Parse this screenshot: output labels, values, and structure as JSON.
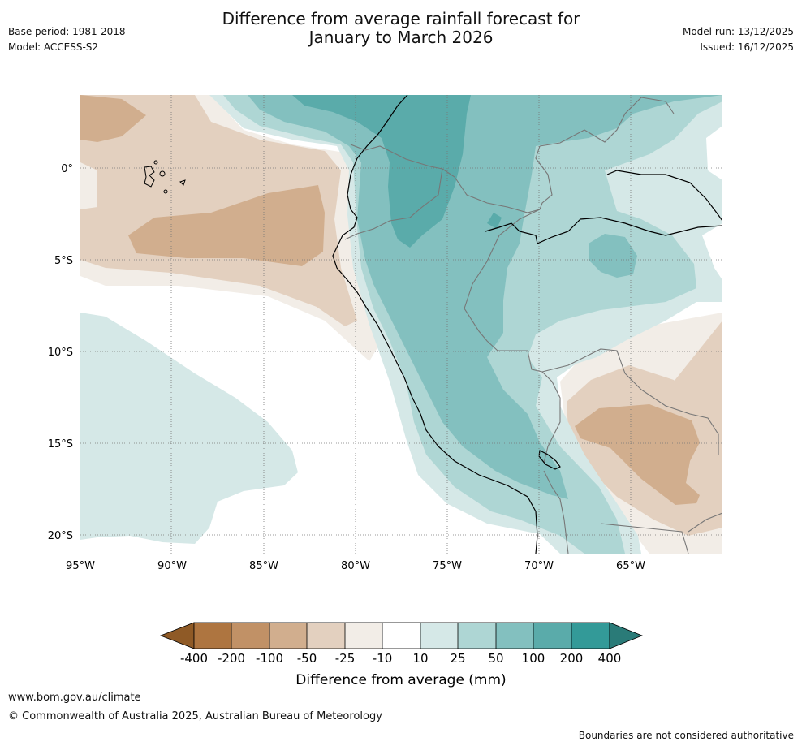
{
  "header": {
    "title_line1": "Difference from average rainfall forecast for",
    "title_line2": "January to March 2026",
    "base_period": "Base period: 1981-2018",
    "model": "Model: ACCESS-S2",
    "model_run": "Model run: 13/12/2025",
    "issued": "Issued: 16/12/2025"
  },
  "map": {
    "region": "Western South America and eastern Pacific",
    "lat_labels": [
      "0°",
      "5°S",
      "10°S",
      "15°S",
      "20°S"
    ],
    "lon_labels": [
      "95°W",
      "90°W",
      "85°W",
      "80°W",
      "75°W",
      "70°W",
      "65°W"
    ]
  },
  "colorbar": {
    "title": "Difference from average (mm)",
    "tick_labels": [
      "-400",
      "-200",
      "-100",
      "-50",
      "-25",
      "-10",
      "10",
      "25",
      "50",
      "100",
      "200",
      "400"
    ],
    "colors": {
      "lt_400": "#8f5a26",
      "m400_m200": "#ae7540",
      "m200_m100": "#c19166",
      "m100_m50": "#d1ae8e",
      "m50_m25": "#e3d0bf",
      "m25_m10": "#f2ede7",
      "m10_10": "#ffffff",
      "10_25": "#d5e8e7",
      "25_50": "#aed6d4",
      "50_100": "#83c0bf",
      "100_200": "#5aabaa",
      "200_400": "#339a98",
      "gt_400": "#2a7b78"
    }
  },
  "footer": {
    "url": "www.bom.gov.au/climate",
    "copyright": "© Commonwealth of Australia 2025, Australian Bureau of Meteorology",
    "disclaimer": "Boundaries are not considered authoritative"
  }
}
